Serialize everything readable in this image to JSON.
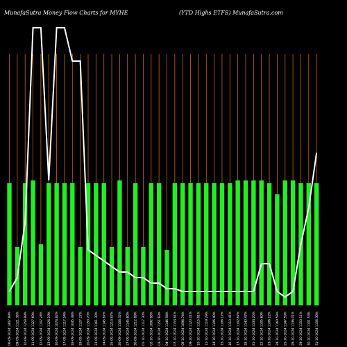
{
  "header": {
    "title_left": "MunafaSutra  Money Flow  Charts for MYHE",
    "title_right": "(YTD Highs ETFS) MunafaSutra.com"
  },
  "colors": {
    "background": "#000000",
    "bar": "#22ee22",
    "grid": "#cc6a00",
    "line": "#ffffff"
  },
  "chart_data": {
    "type": "bar",
    "title": "MunafaSutra  Money Flow  Charts for MYHE",
    "subtitle": "(YTD Highs ETFS) MunafaSutra.com",
    "ylim": [
      0,
      100
    ],
    "values": [
      44,
      21,
      44,
      45,
      22,
      44,
      44,
      44,
      44,
      21,
      44,
      44,
      44,
      21,
      45,
      21,
      44,
      21,
      44,
      44,
      20,
      44,
      44,
      44,
      44,
      44,
      44,
      44,
      44,
      45,
      45,
      45,
      45,
      44,
      40,
      45,
      45,
      44,
      44,
      44
    ],
    "line": [
      5,
      10,
      30,
      100,
      100,
      45,
      100,
      100,
      88,
      88,
      20,
      18,
      16,
      14,
      12,
      12,
      10,
      10,
      8,
      8,
      6,
      6,
      5,
      5,
      5,
      5,
      5,
      5,
      5,
      5,
      5,
      5,
      15,
      15,
      5,
      3,
      5,
      22,
      35,
      55
    ],
    "labels": [
      "06-09-2024 1407.89%",
      "09-09-2024 1121.36%",
      "10-09-2024 1258.89%",
      "11-09-2024 1127.69%",
      "12-09-2024 1102.24%",
      "13-09-2024 1126.19%",
      "16-09-2024 1074.82%",
      "17-09-2024 1117.54%",
      "18-09-2024 1045.38%",
      "19-09-2024 1127.27%",
      "20-09-2024 1150.70%",
      "23-09-2024 1161.30%",
      "24-09-2024 1145.87%",
      "25-09-2024 1213.87%",
      "26-09-2024 1106.32%",
      "27-09-2024 1145.80%",
      "30-09-2024 1212.89%",
      "01-10-2024 1117.30%",
      "02-10-2024 1092.88%",
      "03-10-2024 1151.83%",
      "04-10-2024 1146.94%",
      "07-10-2024 1153.81%",
      "08-10-2024 1096.74%",
      "09-10-2024 1120.01%",
      "10-10-2024 1115.81%",
      "11-10-2024 1119.29%",
      "14-10-2024 1106.40%",
      "15-10-2024 1106.17%",
      "16-10-2024 1110.41%",
      "17-10-2024 1102.87%",
      "18-10-2024 1140.47%",
      "21-10-2024 1133.20%",
      "22-10-2024 1105.69%",
      "23-10-2024 1106.12%",
      "24-10-2024 1160.58%",
      "25-10-2024 1147.59%",
      "28-10-2024 1136.01%",
      "29-10-2024 1150.11%",
      "30-10-2024 1101.53%",
      "31-10-2024 1156.30%"
    ]
  }
}
